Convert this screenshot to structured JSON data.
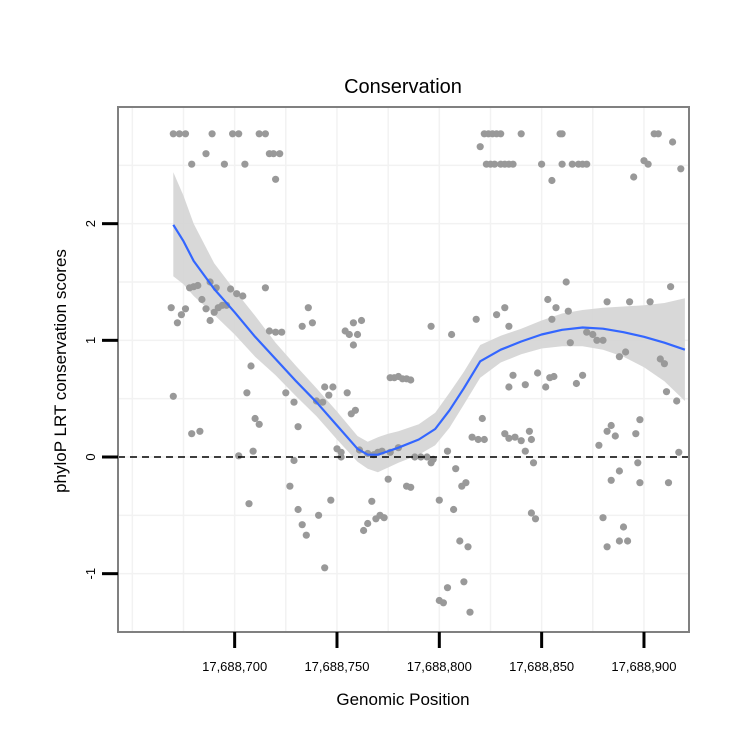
{
  "chart_data": {
    "type": "scatter",
    "title": "Conservation",
    "xlabel": "Genomic Position",
    "ylabel": "phyloP LRT conservation scores",
    "xlim": [
      17688643,
      17688922
    ],
    "ylim": [
      -1.5,
      3.0
    ],
    "x_ticks": [
      17688700,
      17688750,
      17688800,
      17688850,
      17688900
    ],
    "x_tick_labels": [
      "17,688,700",
      "17,688,750",
      "17,688,800",
      "17,688,850",
      "17,688,900"
    ],
    "y_ticks": [
      -1,
      0,
      1,
      2
    ],
    "y_tick_labels": [
      "-1",
      "0",
      "1",
      "2"
    ],
    "hline": {
      "y": 0,
      "style": "dashed",
      "color": "#000000"
    },
    "colors": {
      "points": "#999999",
      "smooth": "#3366ff",
      "band": "#d4d4d4",
      "panel_border": "#808080",
      "grid": "#f2f2f2"
    },
    "grid": true,
    "points": [
      {
        "x": 17688670,
        "y": 2.77
      },
      {
        "x": 17688673,
        "y": 2.77
      },
      {
        "x": 17688676,
        "y": 2.77
      },
      {
        "x": 17688679,
        "y": 2.51
      },
      {
        "x": 17688686,
        "y": 2.6
      },
      {
        "x": 17688689,
        "y": 2.77
      },
      {
        "x": 17688695,
        "y": 2.51
      },
      {
        "x": 17688699,
        "y": 2.77
      },
      {
        "x": 17688702,
        "y": 2.77
      },
      {
        "x": 17688705,
        "y": 2.51
      },
      {
        "x": 17688712,
        "y": 2.77
      },
      {
        "x": 17688715,
        "y": 2.77
      },
      {
        "x": 17688717,
        "y": 2.6
      },
      {
        "x": 17688719,
        "y": 2.6
      },
      {
        "x": 17688720,
        "y": 2.38
      },
      {
        "x": 17688722,
        "y": 2.6
      },
      {
        "x": 17688669,
        "y": 1.28
      },
      {
        "x": 17688670,
        "y": 0.52
      },
      {
        "x": 17688672,
        "y": 1.15
      },
      {
        "x": 17688674,
        "y": 1.22
      },
      {
        "x": 17688676,
        "y": 1.27
      },
      {
        "x": 17688678,
        "y": 1.45
      },
      {
        "x": 17688680,
        "y": 1.46
      },
      {
        "x": 17688682,
        "y": 1.47
      },
      {
        "x": 17688684,
        "y": 1.35
      },
      {
        "x": 17688686,
        "y": 1.27
      },
      {
        "x": 17688688,
        "y": 1.17
      },
      {
        "x": 17688690,
        "y": 1.24
      },
      {
        "x": 17688692,
        "y": 1.28
      },
      {
        "x": 17688694,
        "y": 1.3
      },
      {
        "x": 17688696,
        "y": 1.3
      },
      {
        "x": 17688698,
        "y": 1.44
      },
      {
        "x": 17688701,
        "y": 1.4
      },
      {
        "x": 17688704,
        "y": 1.38
      },
      {
        "x": 17688706,
        "y": 0.55
      },
      {
        "x": 17688708,
        "y": 0.78
      },
      {
        "x": 17688710,
        "y": 0.33
      },
      {
        "x": 17688712,
        "y": 0.28
      },
      {
        "x": 17688715,
        "y": 1.45
      },
      {
        "x": 17688717,
        "y": 1.08
      },
      {
        "x": 17688720,
        "y": 1.07
      },
      {
        "x": 17688723,
        "y": 1.07
      },
      {
        "x": 17688725,
        "y": 0.55
      },
      {
        "x": 17688729,
        "y": 0.47
      },
      {
        "x": 17688731,
        "y": 0.26
      },
      {
        "x": 17688733,
        "y": 1.12
      },
      {
        "x": 17688736,
        "y": 1.28
      },
      {
        "x": 17688738,
        "y": 1.15
      },
      {
        "x": 17688740,
        "y": 0.48
      },
      {
        "x": 17688743,
        "y": 0.47
      },
      {
        "x": 17688679,
        "y": 0.2
      },
      {
        "x": 17688683,
        "y": 0.22
      },
      {
        "x": 17688707,
        "y": -0.4
      },
      {
        "x": 17688709,
        "y": 0.05
      },
      {
        "x": 17688727,
        "y": -0.25
      },
      {
        "x": 17688729,
        "y": -0.03
      },
      {
        "x": 17688731,
        "y": -0.45
      },
      {
        "x": 17688733,
        "y": -0.58
      },
      {
        "x": 17688735,
        "y": -0.67
      },
      {
        "x": 17688741,
        "y": -0.5
      },
      {
        "x": 17688744,
        "y": -0.95
      },
      {
        "x": 17688747,
        "y": -0.37
      },
      {
        "x": 17688746,
        "y": 0.53
      },
      {
        "x": 17688748,
        "y": 0.6
      },
      {
        "x": 17688750,
        "y": 0.07
      },
      {
        "x": 17688752,
        "y": 0.04
      },
      {
        "x": 17688754,
        "y": 1.08
      },
      {
        "x": 17688756,
        "y": 1.05
      },
      {
        "x": 17688758,
        "y": 0.96
      },
      {
        "x": 17688760,
        "y": 1.05
      },
      {
        "x": 17688755,
        "y": 0.55
      },
      {
        "x": 17688757,
        "y": 0.37
      },
      {
        "x": 17688759,
        "y": 0.4
      },
      {
        "x": 17688761,
        "y": 0.06
      },
      {
        "x": 17688763,
        "y": -0.63
      },
      {
        "x": 17688765,
        "y": -0.57
      },
      {
        "x": 17688767,
        "y": -0.38
      },
      {
        "x": 17688769,
        "y": -0.53
      },
      {
        "x": 17688771,
        "y": -0.5
      },
      {
        "x": 17688773,
        "y": -0.52
      },
      {
        "x": 17688775,
        "y": -0.19
      },
      {
        "x": 17688776,
        "y": 0.68
      },
      {
        "x": 17688778,
        "y": 0.68
      },
      {
        "x": 17688780,
        "y": 0.69
      },
      {
        "x": 17688782,
        "y": 0.67
      },
      {
        "x": 17688784,
        "y": 0.67
      },
      {
        "x": 17688786,
        "y": 0.66
      },
      {
        "x": 17688758,
        "y": 1.15
      },
      {
        "x": 17688762,
        "y": 1.17
      },
      {
        "x": 17688765,
        "y": 0.03
      },
      {
        "x": 17688768,
        "y": 0.02
      },
      {
        "x": 17688770,
        "y": 0.04
      },
      {
        "x": 17688772,
        "y": 0.05
      },
      {
        "x": 17688776,
        "y": 0.04
      },
      {
        "x": 17688780,
        "y": 0.08
      },
      {
        "x": 17688784,
        "y": -0.25
      },
      {
        "x": 17688786,
        "y": -0.26
      },
      {
        "x": 17688788,
        "y": 0.0
      },
      {
        "x": 17688791,
        "y": 0.0
      },
      {
        "x": 17688794,
        "y": 0.0
      },
      {
        "x": 17688796,
        "y": -0.05
      },
      {
        "x": 17688797,
        "y": -0.02
      },
      {
        "x": 17688796,
        "y": 1.12
      },
      {
        "x": 17688800,
        "y": -0.37
      },
      {
        "x": 17688800,
        "y": -1.23
      },
      {
        "x": 17688802,
        "y": -1.25
      },
      {
        "x": 17688804,
        "y": -1.12
      },
      {
        "x": 17688804,
        "y": 0.05
      },
      {
        "x": 17688806,
        "y": 1.05
      },
      {
        "x": 17688807,
        "y": -0.45
      },
      {
        "x": 17688808,
        "y": -0.1
      },
      {
        "x": 17688810,
        "y": -0.72
      },
      {
        "x": 17688812,
        "y": -1.07
      },
      {
        "x": 17688814,
        "y": -0.77
      },
      {
        "x": 17688815,
        "y": -1.33
      },
      {
        "x": 17688811,
        "y": -0.25
      },
      {
        "x": 17688813,
        "y": -0.22
      },
      {
        "x": 17688816,
        "y": 0.17
      },
      {
        "x": 17688819,
        "y": 0.15
      },
      {
        "x": 17688822,
        "y": 0.15
      },
      {
        "x": 17688821,
        "y": 0.33
      },
      {
        "x": 17688818,
        "y": 1.18
      },
      {
        "x": 17688820,
        "y": 2.66
      },
      {
        "x": 17688822,
        "y": 2.77
      },
      {
        "x": 17688824,
        "y": 2.77
      },
      {
        "x": 17688826,
        "y": 2.77
      },
      {
        "x": 17688828,
        "y": 2.77
      },
      {
        "x": 17688830,
        "y": 2.77
      },
      {
        "x": 17688823,
        "y": 2.51
      },
      {
        "x": 17688825,
        "y": 2.51
      },
      {
        "x": 17688827,
        "y": 2.51
      },
      {
        "x": 17688830,
        "y": 2.51
      },
      {
        "x": 17688832,
        "y": 2.51
      },
      {
        "x": 17688834,
        "y": 2.51
      },
      {
        "x": 17688836,
        "y": 2.51
      },
      {
        "x": 17688840,
        "y": 2.77
      },
      {
        "x": 17688828,
        "y": 1.22
      },
      {
        "x": 17688832,
        "y": 1.28
      },
      {
        "x": 17688834,
        "y": 1.12
      },
      {
        "x": 17688834,
        "y": 0.6
      },
      {
        "x": 17688836,
        "y": 0.7
      },
      {
        "x": 17688832,
        "y": 0.2
      },
      {
        "x": 17688834,
        "y": 0.16
      },
      {
        "x": 17688837,
        "y": 0.17
      },
      {
        "x": 17688840,
        "y": 0.14
      },
      {
        "x": 17688842,
        "y": 0.05
      },
      {
        "x": 17688842,
        "y": 0.62
      },
      {
        "x": 17688844,
        "y": 0.22
      },
      {
        "x": 17688845,
        "y": 0.15
      },
      {
        "x": 17688846,
        "y": -0.05
      },
      {
        "x": 17688845,
        "y": -0.48
      },
      {
        "x": 17688847,
        "y": -0.53
      },
      {
        "x": 17688848,
        "y": 0.72
      },
      {
        "x": 17688850,
        "y": 2.51
      },
      {
        "x": 17688852,
        "y": 0.6
      },
      {
        "x": 17688853,
        "y": 1.35
      },
      {
        "x": 17688855,
        "y": 1.18
      },
      {
        "x": 17688854,
        "y": 0.68
      },
      {
        "x": 17688856,
        "y": 0.69
      },
      {
        "x": 17688857,
        "y": 1.28
      },
      {
        "x": 17688855,
        "y": 2.37
      },
      {
        "x": 17688859,
        "y": 2.77
      },
      {
        "x": 17688860,
        "y": 2.77
      },
      {
        "x": 17688860,
        "y": 2.51
      },
      {
        "x": 17688862,
        "y": 1.5
      },
      {
        "x": 17688863,
        "y": 1.25
      },
      {
        "x": 17688864,
        "y": 0.98
      },
      {
        "x": 17688865,
        "y": 2.51
      },
      {
        "x": 17688868,
        "y": 2.51
      },
      {
        "x": 17688870,
        "y": 2.51
      },
      {
        "x": 17688872,
        "y": 2.51
      },
      {
        "x": 17688867,
        "y": 0.63
      },
      {
        "x": 17688870,
        "y": 0.7
      },
      {
        "x": 17688872,
        "y": 1.07
      },
      {
        "x": 17688875,
        "y": 1.05
      },
      {
        "x": 17688877,
        "y": 1.0
      },
      {
        "x": 17688880,
        "y": 1.0
      },
      {
        "x": 17688882,
        "y": 1.33
      },
      {
        "x": 17688878,
        "y": 0.1
      },
      {
        "x": 17688880,
        "y": -0.52
      },
      {
        "x": 17688882,
        "y": -0.77
      },
      {
        "x": 17688882,
        "y": 0.22
      },
      {
        "x": 17688884,
        "y": 0.27
      },
      {
        "x": 17688886,
        "y": 0.18
      },
      {
        "x": 17688884,
        "y": -0.2
      },
      {
        "x": 17688888,
        "y": -0.72
      },
      {
        "x": 17688890,
        "y": -0.6
      },
      {
        "x": 17688888,
        "y": 0.86
      },
      {
        "x": 17688891,
        "y": 0.9
      },
      {
        "x": 17688888,
        "y": -0.12
      },
      {
        "x": 17688892,
        "y": -0.72
      },
      {
        "x": 17688893,
        "y": 1.33
      },
      {
        "x": 17688895,
        "y": 2.4
      },
      {
        "x": 17688897,
        "y": -0.05
      },
      {
        "x": 17688898,
        "y": -0.22
      },
      {
        "x": 17688896,
        "y": 0.2
      },
      {
        "x": 17688898,
        "y": 0.32
      },
      {
        "x": 17688900,
        "y": 2.54
      },
      {
        "x": 17688902,
        "y": 2.51
      },
      {
        "x": 17688903,
        "y": 1.33
      },
      {
        "x": 17688905,
        "y": 2.77
      },
      {
        "x": 17688907,
        "y": 2.77
      },
      {
        "x": 17688908,
        "y": 0.84
      },
      {
        "x": 17688910,
        "y": 0.8
      },
      {
        "x": 17688911,
        "y": 0.56
      },
      {
        "x": 17688912,
        "y": -0.22
      },
      {
        "x": 17688913,
        "y": 1.46
      },
      {
        "x": 17688914,
        "y": 2.7
      },
      {
        "x": 17688916,
        "y": 0.48
      },
      {
        "x": 17688917,
        "y": 0.04
      },
      {
        "x": 17688918,
        "y": 2.47
      },
      {
        "x": 17688702,
        "y": 0.01
      },
      {
        "x": 17688688,
        "y": 1.5
      },
      {
        "x": 17688691,
        "y": 1.45
      },
      {
        "x": 17688744,
        "y": 0.6
      },
      {
        "x": 17688752,
        "y": 0.0
      }
    ],
    "smooth": {
      "x": [
        17688670,
        17688675,
        17688680,
        17688690,
        17688700,
        17688710,
        17688720,
        17688730,
        17688740,
        17688750,
        17688760,
        17688765,
        17688770,
        17688775,
        17688780,
        17688790,
        17688798,
        17688805,
        17688812,
        17688820,
        17688830,
        17688840,
        17688850,
        17688860,
        17688870,
        17688880,
        17688890,
        17688900,
        17688910,
        17688920
      ],
      "y": [
        1.99,
        1.85,
        1.68,
        1.44,
        1.24,
        1.03,
        0.84,
        0.65,
        0.47,
        0.27,
        0.07,
        0.02,
        0.02,
        0.05,
        0.08,
        0.15,
        0.24,
        0.4,
        0.59,
        0.82,
        0.92,
        0.99,
        1.05,
        1.09,
        1.11,
        1.1,
        1.07,
        1.03,
        0.98,
        0.92
      ],
      "lower": [
        1.55,
        1.48,
        1.38,
        1.22,
        1.05,
        0.86,
        0.7,
        0.52,
        0.35,
        0.15,
        -0.04,
        -0.1,
        -0.13,
        -0.09,
        -0.05,
        0.02,
        0.1,
        0.25,
        0.45,
        0.68,
        0.81,
        0.88,
        0.93,
        0.95,
        0.95,
        0.92,
        0.86,
        0.77,
        0.65,
        0.48
      ],
      "upper": [
        2.44,
        2.24,
        2.0,
        1.66,
        1.43,
        1.21,
        0.98,
        0.78,
        0.59,
        0.39,
        0.18,
        0.13,
        0.17,
        0.2,
        0.22,
        0.28,
        0.38,
        0.55,
        0.73,
        0.96,
        1.04,
        1.1,
        1.17,
        1.23,
        1.26,
        1.28,
        1.29,
        1.3,
        1.32,
        1.36
      ]
    }
  }
}
